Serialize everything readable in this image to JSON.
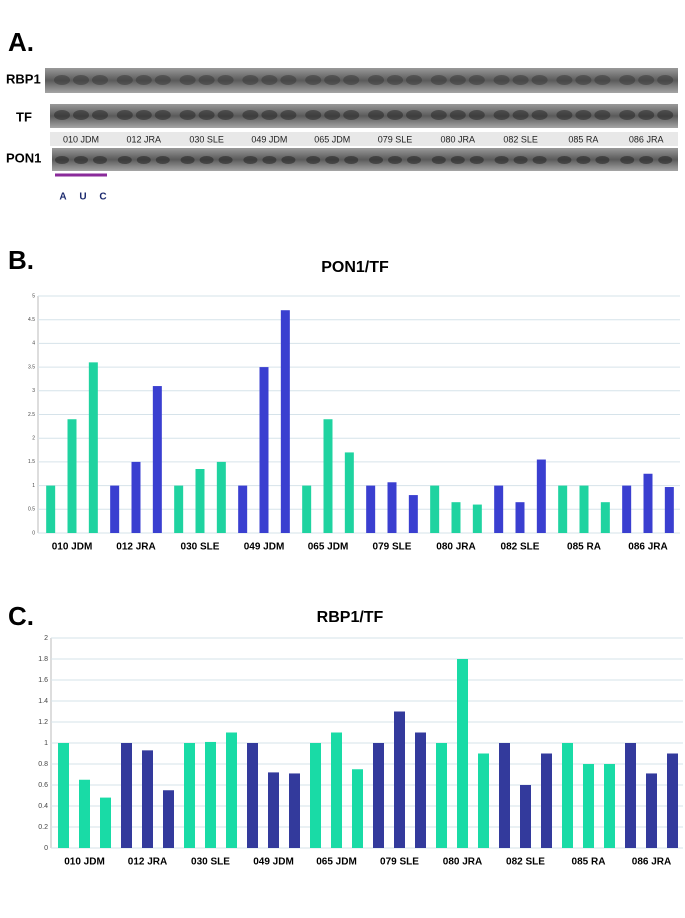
{
  "figure": {
    "panel_labels": [
      "A.",
      "B.",
      "C."
    ],
    "blot": {
      "rows": [
        "RBP1",
        "TF",
        "PON1"
      ],
      "samples": [
        "010 JDM",
        "012 JRA",
        "030 SLE",
        "049 JDM",
        "065 JDM",
        "079 SLE",
        "080 JRA",
        "082 SLE",
        "085 RA",
        "086 JRA"
      ],
      "lane_labels": [
        "A",
        "U",
        "C"
      ]
    }
  },
  "chart_data": [
    {
      "type": "bar",
      "title": "PON1/TF",
      "categories": [
        "010 JDM",
        "012 JRA",
        "030 SLE",
        "049 JDM",
        "065 JDM",
        "079 SLE",
        "080 JRA",
        "082 SLE",
        "085 RA",
        "086 JRA"
      ],
      "values": [
        [
          1,
          2.4,
          3.6
        ],
        [
          1,
          1.5,
          3.1
        ],
        [
          1,
          1.35,
          1.5
        ],
        [
          1,
          3.5,
          4.7
        ],
        [
          1,
          2.4,
          1.7
        ],
        [
          1,
          1.07,
          0.8
        ],
        [
          1,
          0.65,
          0.6
        ],
        [
          1,
          0.65,
          1.55
        ],
        [
          1,
          1,
          0.65
        ],
        [
          1,
          1.25,
          0.97
        ]
      ],
      "colors": [
        "#1fd3a0",
        "#3a3fd0",
        "#1fd3a0",
        "#3a3fd0",
        "#1fd3a0",
        "#3a3fd0",
        "#1fd3a0",
        "#3a3fd0",
        "#1fd3a0",
        "#3a3fd0"
      ],
      "ylim": [
        0,
        5
      ],
      "yticks": [
        0,
        0.5,
        1,
        1.5,
        2,
        2.5,
        3,
        3.5,
        4,
        4.5,
        5
      ],
      "grid": true
    },
    {
      "type": "bar",
      "title": "RBP1/TF",
      "categories": [
        "010 JDM",
        "012 JRA",
        "030 SLE",
        "049 JDM",
        "065 JDM",
        "079 SLE",
        "080 JRA",
        "082 SLE",
        "085 RA",
        "086 JRA"
      ],
      "values": [
        [
          1,
          0.65,
          0.48
        ],
        [
          1,
          0.93,
          0.55
        ],
        [
          1,
          1.01,
          1.1
        ],
        [
          1,
          0.72,
          0.71
        ],
        [
          1,
          1.1,
          0.75
        ],
        [
          1,
          1.3,
          1.1
        ],
        [
          1,
          1.8,
          0.9
        ],
        [
          1,
          0.6,
          0.9
        ],
        [
          1,
          0.8,
          0.8
        ],
        [
          1,
          0.71,
          0.9
        ]
      ],
      "colors": [
        "#19dba6",
        "#333a9c",
        "#19dba6",
        "#333a9c",
        "#19dba6",
        "#333a9c",
        "#19dba6",
        "#333a9c",
        "#19dba6",
        "#333a9c"
      ],
      "ylim": [
        0,
        2
      ],
      "yticks": [
        0,
        0.2,
        0.4,
        0.6,
        0.8,
        1,
        1.2,
        1.4,
        1.6,
        1.8,
        2
      ],
      "grid": true
    }
  ]
}
